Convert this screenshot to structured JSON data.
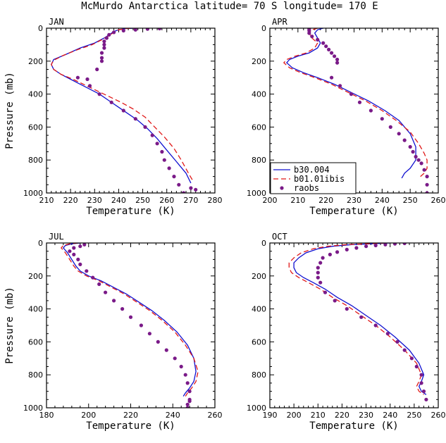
{
  "title": "McMurdo Antarctica  latitude= 70 S longitude= 170 E",
  "series_styles": {
    "b30.004": {
      "color": "#1010d0",
      "dash": "",
      "kind": "line"
    },
    "b01.01ibis": {
      "color": "#e01818",
      "dash": "7,4",
      "kind": "line"
    },
    "raobs": {
      "color": "#7a1a88",
      "kind": "points"
    }
  },
  "chart_data": [
    {
      "type": "line",
      "panel_label": "JAN",
      "xlabel": "Temperature (K)",
      "ylabel": "Pressure (mb)",
      "xlim": [
        210,
        280
      ],
      "xticks": [
        210,
        220,
        230,
        240,
        250,
        260,
        270,
        280
      ],
      "ylim": [
        0,
        1000
      ],
      "yticks": [
        0,
        200,
        400,
        600,
        800,
        1000
      ],
      "y_inverted": true,
      "legend": false,
      "series": [
        {
          "name": "b30.004",
          "x": [
            248,
            243,
            240,
            238,
            236,
            234,
            230,
            224,
            218,
            213,
            212,
            213,
            216,
            220,
            224,
            228,
            232,
            236,
            240,
            244,
            248,
            252,
            256,
            260,
            264,
            268,
            270
          ],
          "y": [
            0,
            2,
            10,
            20,
            40,
            60,
            90,
            120,
            160,
            190,
            220,
            250,
            280,
            310,
            340,
            370,
            400,
            440,
            480,
            520,
            560,
            610,
            670,
            740,
            810,
            880,
            940
          ]
        },
        {
          "name": "b01.01ibis",
          "x": [
            248,
            243,
            240,
            238,
            236,
            233,
            229,
            223,
            217,
            213,
            212,
            213,
            216,
            221,
            226,
            231,
            236,
            241,
            246,
            251,
            255,
            259,
            263,
            266,
            269,
            271
          ],
          "y": [
            0,
            2,
            10,
            25,
            45,
            70,
            100,
            130,
            165,
            195,
            220,
            250,
            280,
            310,
            345,
            380,
            415,
            450,
            490,
            540,
            600,
            660,
            730,
            800,
            880,
            930
          ]
        },
        {
          "name": "raobs",
          "x": [
            257,
            252,
            247,
            242,
            238,
            236,
            235,
            234,
            234,
            234,
            233,
            233,
            233,
            231,
            227,
            223,
            228,
            232,
            237,
            242,
            247,
            251,
            254,
            256,
            258,
            259,
            261,
            263,
            265,
            267,
            270,
            272
          ],
          "y": [
            2,
            5,
            10,
            15,
            25,
            40,
            60,
            80,
            100,
            120,
            150,
            180,
            200,
            250,
            310,
            300,
            350,
            400,
            450,
            500,
            550,
            600,
            650,
            700,
            750,
            800,
            850,
            900,
            950,
            1000,
            970,
            980
          ]
        }
      ]
    },
    {
      "type": "line",
      "panel_label": "APR",
      "xlabel": "Temperature (K)",
      "ylabel": "",
      "xlim": [
        200,
        260
      ],
      "xticks": [
        200,
        210,
        220,
        230,
        240,
        250,
        260
      ],
      "ylim": [
        0,
        1000
      ],
      "yticks": [
        0,
        200,
        400,
        600,
        800,
        1000
      ],
      "y_inverted": true,
      "legend": true,
      "legend_position": "bottom-left",
      "series": [
        {
          "name": "b30.004",
          "x": [
            219,
            217,
            216,
            217,
            218,
            217,
            214,
            210,
            207,
            206,
            208,
            212,
            217,
            223,
            229,
            235,
            241,
            246,
            250,
            252,
            252,
            250,
            248,
            247
          ],
          "y": [
            0,
            10,
            30,
            60,
            90,
            120,
            150,
            170,
            190,
            210,
            240,
            270,
            300,
            340,
            390,
            440,
            500,
            560,
            640,
            720,
            800,
            850,
            880,
            910
          ]
        },
        {
          "name": "b01.01ibis",
          "x": [
            217,
            215,
            214,
            215,
            217,
            216,
            213,
            209,
            206,
            205,
            207,
            211,
            216,
            222,
            228,
            234,
            240,
            245,
            250,
            253,
            255,
            256,
            256,
            255,
            253
          ],
          "y": [
            0,
            10,
            30,
            60,
            90,
            120,
            150,
            170,
            190,
            210,
            240,
            270,
            300,
            340,
            390,
            440,
            500,
            560,
            630,
            700,
            760,
            800,
            850,
            880,
            910
          ]
        },
        {
          "name": "raobs",
          "x": [
            214,
            214,
            214,
            215,
            217,
            219,
            220,
            221,
            222,
            223,
            224,
            224,
            222,
            225,
            229,
            232,
            236,
            240,
            243,
            246,
            248,
            250,
            251,
            252,
            253,
            254,
            255,
            256,
            256,
            256
          ],
          "y": [
            5,
            15,
            30,
            50,
            70,
            90,
            110,
            130,
            150,
            170,
            190,
            210,
            300,
            350,
            400,
            450,
            500,
            550,
            600,
            640,
            680,
            720,
            750,
            780,
            800,
            820,
            860,
            900,
            950,
            1000
          ]
        }
      ]
    },
    {
      "type": "line",
      "panel_label": "JUL",
      "xlabel": "Temperature (K)",
      "ylabel": "Pressure (mb)",
      "xlim": [
        180,
        260
      ],
      "xticks": [
        180,
        200,
        220,
        240,
        260
      ],
      "ylim": [
        0,
        1000
      ],
      "yticks": [
        0,
        200,
        400,
        600,
        800,
        1000
      ],
      "y_inverted": true,
      "legend": false,
      "series": [
        {
          "name": "b30.004",
          "x": [
            196,
            192,
            189,
            188,
            190,
            192,
            194,
            196,
            200,
            206,
            212,
            218,
            224,
            230,
            236,
            242,
            247,
            250,
            251,
            250,
            248,
            246,
            245
          ],
          "y": [
            0,
            5,
            15,
            30,
            60,
            100,
            140,
            170,
            200,
            230,
            270,
            310,
            360,
            410,
            470,
            540,
            620,
            700,
            780,
            840,
            880,
            910,
            930
          ]
        },
        {
          "name": "b01.01ibis",
          "x": [
            195,
            191,
            188,
            187,
            189,
            191,
            193,
            195,
            199,
            205,
            211,
            217,
            223,
            229,
            235,
            241,
            246,
            250,
            252,
            251,
            249,
            247,
            246
          ],
          "y": [
            0,
            5,
            15,
            30,
            60,
            100,
            140,
            170,
            200,
            230,
            270,
            310,
            360,
            410,
            470,
            540,
            620,
            700,
            780,
            840,
            880,
            910,
            930
          ]
        },
        {
          "name": "raobs",
          "x": [
            198,
            196,
            193,
            191,
            193,
            195,
            196,
            199,
            202,
            205,
            208,
            212,
            216,
            220,
            225,
            229,
            233,
            237,
            241,
            244,
            246,
            247,
            248,
            248,
            248,
            247,
            247
          ],
          "y": [
            10,
            20,
            30,
            50,
            70,
            100,
            130,
            170,
            210,
            250,
            300,
            350,
            400,
            450,
            500,
            550,
            600,
            650,
            700,
            750,
            800,
            850,
            900,
            950,
            960,
            980,
            1000
          ]
        }
      ]
    },
    {
      "type": "line",
      "panel_label": "OCT",
      "xlabel": "Temperature (K)",
      "ylabel": "",
      "xlim": [
        190,
        260
      ],
      "xticks": [
        190,
        200,
        210,
        220,
        230,
        240,
        250,
        260
      ],
      "ylim": [
        0,
        1000
      ],
      "yticks": [
        0,
        200,
        400,
        600,
        800,
        1000
      ],
      "y_inverted": true,
      "legend": false,
      "series": [
        {
          "name": "b30.004",
          "x": [
            240,
            232,
            224,
            216,
            210,
            205,
            202,
            200,
            200,
            201,
            204,
            208,
            213,
            218,
            224,
            230,
            236,
            242,
            248,
            252,
            254,
            253,
            252,
            253,
            255
          ],
          "y": [
            0,
            5,
            10,
            20,
            35,
            60,
            90,
            120,
            150,
            180,
            210,
            240,
            280,
            330,
            380,
            440,
            500,
            570,
            650,
            730,
            800,
            840,
            870,
            900,
            920
          ]
        },
        {
          "name": "b01.01ibis",
          "x": [
            238,
            230,
            222,
            214,
            208,
            203,
            200,
            198,
            198,
            199,
            202,
            206,
            211,
            216,
            222,
            228,
            234,
            240,
            246,
            251,
            253,
            252,
            251,
            252,
            254
          ],
          "y": [
            0,
            5,
            10,
            20,
            35,
            60,
            90,
            120,
            150,
            180,
            210,
            240,
            280,
            330,
            380,
            440,
            500,
            570,
            650,
            730,
            800,
            840,
            870,
            900,
            920
          ]
        },
        {
          "name": "raobs",
          "x": [
            246,
            242,
            238,
            234,
            230,
            226,
            222,
            218,
            215,
            212,
            211,
            210,
            210,
            210,
            211,
            213,
            217,
            222,
            228,
            234,
            239,
            243,
            246,
            249,
            251,
            253,
            253,
            254,
            255
          ],
          "y": [
            2,
            5,
            10,
            15,
            20,
            30,
            40,
            55,
            70,
            90,
            120,
            150,
            180,
            210,
            240,
            300,
            350,
            400,
            450,
            500,
            550,
            600,
            650,
            700,
            750,
            800,
            850,
            900,
            950
          ]
        }
      ]
    }
  ]
}
